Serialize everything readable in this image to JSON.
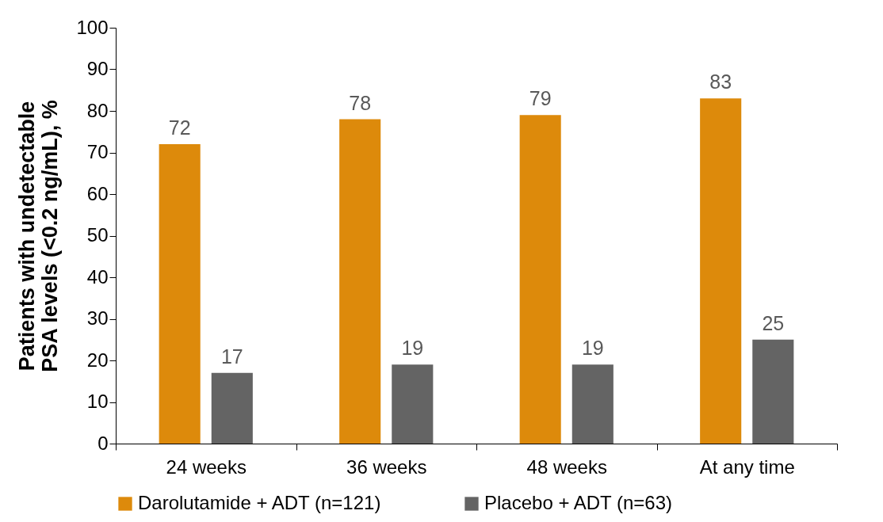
{
  "chart_data": {
    "type": "bar",
    "ylabel": "Patients with undetectable\nPSA levels (<0.2 ng/mL), %",
    "categories": [
      "24 weeks",
      "36 weeks",
      "48 weeks",
      "At any time"
    ],
    "series": [
      {
        "name": "Darolutamide + ADT (n=121)",
        "color": "#dd8a0b",
        "values": [
          72,
          78,
          79,
          83
        ]
      },
      {
        "name": "Placebo + ADT (n=63)",
        "color": "#646464",
        "values": [
          17,
          19,
          19,
          25
        ]
      }
    ],
    "ylim": [
      0,
      100
    ],
    "yticks": [
      0,
      10,
      20,
      30,
      40,
      50,
      60,
      70,
      80,
      90,
      100
    ],
    "grid": false,
    "legend": "bottom",
    "data_labels": true
  }
}
